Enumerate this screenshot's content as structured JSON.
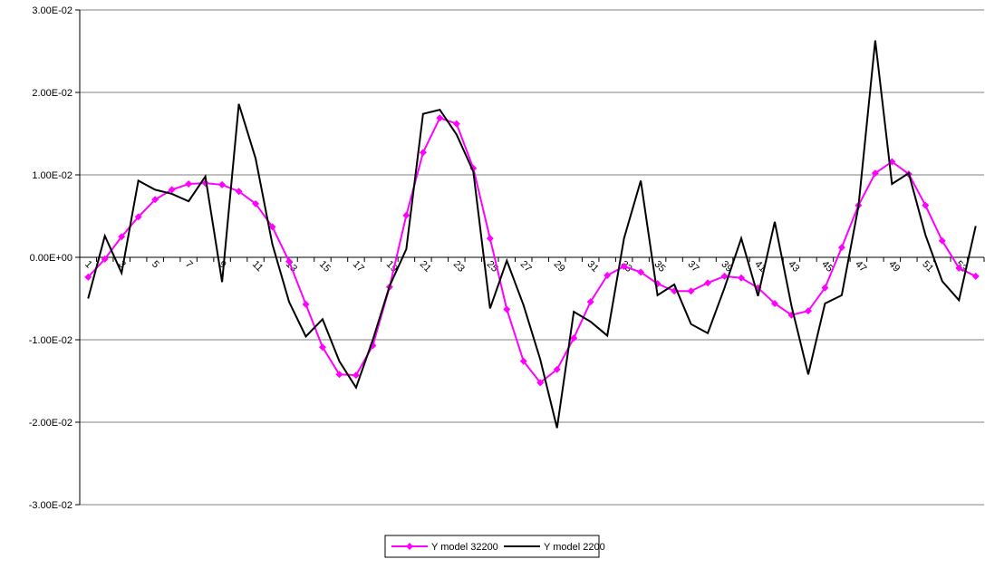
{
  "chart_data": {
    "type": "line",
    "categories": [
      "1",
      null,
      "3",
      null,
      "5",
      null,
      "7",
      null,
      "9",
      null,
      "11",
      null,
      "13",
      null,
      "15",
      null,
      "17",
      null,
      "19",
      null,
      "21",
      null,
      "23",
      null,
      "25",
      null,
      "27",
      null,
      "29",
      null,
      "31",
      null,
      "33",
      null,
      "35",
      null,
      "37",
      null,
      "39",
      null,
      "41",
      null,
      "43",
      null,
      "45",
      null,
      "47",
      null,
      "49",
      null,
      "51",
      null,
      "53",
      null
    ],
    "series": [
      {
        "name": "Y model 32200",
        "color": "#ff00ff",
        "marker": "diamond",
        "values": [
          -0.0024,
          -0.0002,
          0.0025,
          0.0049,
          0.007,
          0.0082,
          0.0089,
          0.009,
          0.0088,
          0.008,
          0.0065,
          0.0037,
          -0.0005,
          -0.0057,
          -0.0109,
          -0.0142,
          -0.0143,
          -0.0107,
          -0.0036,
          0.0051,
          0.0127,
          0.0169,
          0.0162,
          0.0108,
          0.0023,
          -0.0063,
          -0.0126,
          -0.0152,
          -0.0136,
          -0.0098,
          -0.0054,
          -0.0022,
          -0.0011,
          -0.0018,
          -0.0032,
          -0.0041,
          -0.0041,
          -0.0031,
          -0.0023,
          -0.0025,
          -0.0037,
          -0.0056,
          -0.007,
          -0.0065,
          -0.0037,
          0.0012,
          0.0063,
          0.0102,
          0.0116,
          0.0101,
          0.0063,
          0.002,
          -0.0013,
          -0.0023
        ]
      },
      {
        "name": "Y model 2200",
        "color": "#000000",
        "values": [
          -0.005,
          0.0026,
          -0.0019,
          0.0093,
          0.0082,
          0.0077,
          0.0068,
          0.0098,
          -0.003,
          0.0186,
          0.012,
          0.0016,
          -0.0054,
          -0.0096,
          -0.0075,
          -0.0126,
          -0.0158,
          -0.01,
          -0.0035,
          0.001,
          0.0174,
          0.0179,
          0.0149,
          0.0104,
          -0.0062,
          -0.0004,
          -0.0058,
          -0.0124,
          -0.0207,
          -0.0066,
          -0.0078,
          -0.0095,
          0.0023,
          0.0093,
          -0.0046,
          -0.0033,
          -0.0081,
          -0.0092,
          -0.0037,
          0.0023,
          -0.0047,
          0.0043,
          -0.0059,
          -0.0142,
          -0.0056,
          -0.0046,
          0.0062,
          0.0263,
          0.0089,
          0.0102,
          0.0027,
          -0.0029,
          -0.0052,
          0.0038
        ]
      }
    ],
    "ylim": [
      -0.03,
      0.03
    ],
    "yticks": [
      {
        "value": -0.03,
        "label": "-3.00E-02"
      },
      {
        "value": -0.02,
        "label": "-2.00E-02"
      },
      {
        "value": -0.01,
        "label": "-1.00E-02"
      },
      {
        "value": 0,
        "label": "0.00E+00"
      },
      {
        "value": 0.01,
        "label": "1.00E-02"
      },
      {
        "value": 0.02,
        "label": "2.00E-02"
      },
      {
        "value": 0.03,
        "label": "3.00E-02"
      }
    ],
    "grid": true,
    "legend": "bottom"
  }
}
